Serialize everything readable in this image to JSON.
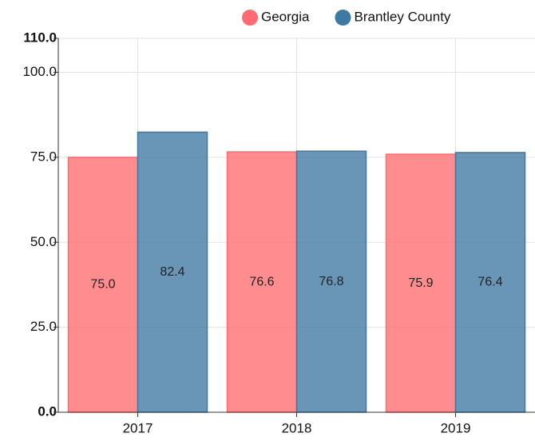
{
  "chart_data": {
    "type": "bar",
    "categories": [
      "2017",
      "2018",
      "2019"
    ],
    "series": [
      {
        "name": "Georgia",
        "color": "#ff6b70",
        "values": [
          75.0,
          76.6,
          75.9
        ],
        "value_labels": [
          "75.0",
          "76.6",
          "75.9"
        ]
      },
      {
        "name": "Brantley County",
        "color": "#3f78a2",
        "values": [
          82.4,
          76.8,
          76.4
        ],
        "value_labels": [
          "82.4",
          "76.8",
          "76.4"
        ]
      }
    ],
    "ylim": [
      0,
      110
    ],
    "yticks": [
      {
        "value": 0,
        "label": "0.0"
      },
      {
        "value": 25,
        "label": "25.0"
      },
      {
        "value": 50,
        "label": "50.0"
      },
      {
        "value": 75,
        "label": "75.0"
      },
      {
        "value": 100,
        "label": "100.0"
      },
      {
        "value": 110,
        "label": "110.0"
      }
    ],
    "grid": true
  }
}
